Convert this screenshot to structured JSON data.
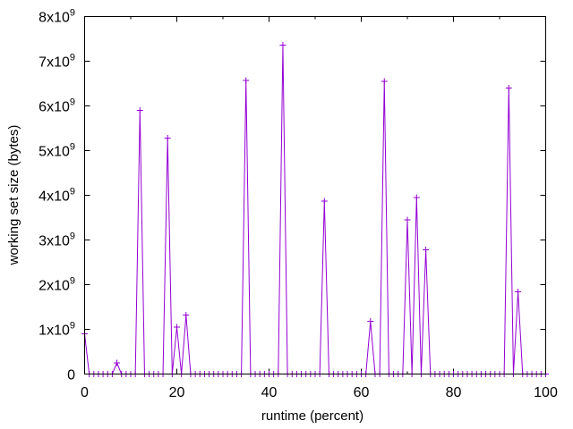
{
  "chart_data": {
    "type": "line",
    "title": "",
    "xlabel": "runtime (percent)",
    "ylabel": "working set size (bytes)",
    "xlim": [
      0,
      100
    ],
    "ylim": [
      0,
      8000000000
    ],
    "xticks": [
      {
        "value": 0,
        "label": "0"
      },
      {
        "value": 20,
        "label": "20"
      },
      {
        "value": 40,
        "label": "40"
      },
      {
        "value": 60,
        "label": "60"
      },
      {
        "value": 80,
        "label": "80"
      },
      {
        "value": 100,
        "label": "100"
      }
    ],
    "yticks": [
      {
        "value": 0,
        "label": "0",
        "base": "",
        "exp": ""
      },
      {
        "value": 1000000000,
        "label": "",
        "base": "1x10",
        "exp": "9"
      },
      {
        "value": 2000000000,
        "label": "",
        "base": "2x10",
        "exp": "9"
      },
      {
        "value": 3000000000,
        "label": "",
        "base": "3x10",
        "exp": "9"
      },
      {
        "value": 4000000000,
        "label": "",
        "base": "4x10",
        "exp": "9"
      },
      {
        "value": 5000000000,
        "label": "",
        "base": "5x10",
        "exp": "9"
      },
      {
        "value": 6000000000,
        "label": "",
        "base": "6x10",
        "exp": "9"
      },
      {
        "value": 7000000000,
        "label": "",
        "base": "7x10",
        "exp": "9"
      },
      {
        "value": 8000000000,
        "label": "",
        "base": "8x10",
        "exp": "9"
      }
    ],
    "grid": false,
    "legend": "none",
    "series_color": "#9400d3",
    "marker": "plus",
    "x": [
      0,
      1,
      2,
      3,
      4,
      5,
      6,
      7,
      8,
      9,
      10,
      11,
      12,
      13,
      14,
      15,
      16,
      17,
      18,
      19,
      20,
      21,
      22,
      23,
      24,
      25,
      26,
      27,
      28,
      29,
      30,
      31,
      32,
      33,
      34,
      35,
      36,
      37,
      38,
      39,
      40,
      41,
      42,
      43,
      44,
      45,
      46,
      47,
      48,
      49,
      50,
      51,
      52,
      53,
      54,
      55,
      56,
      57,
      58,
      59,
      60,
      61,
      62,
      63,
      64,
      65,
      66,
      67,
      68,
      69,
      70,
      71,
      72,
      73,
      74,
      75,
      76,
      77,
      78,
      79,
      80,
      81,
      82,
      83,
      84,
      85,
      86,
      87,
      88,
      89,
      90,
      91,
      92,
      93,
      94,
      95,
      96,
      97,
      98,
      99,
      100
    ],
    "y": [
      900000000,
      0,
      0,
      0,
      0,
      0,
      0,
      250000000,
      0,
      0,
      0,
      0,
      5900000000,
      0,
      0,
      0,
      0,
      0,
      5280000000,
      0,
      1050000000,
      0,
      1320000000,
      0,
      0,
      0,
      0,
      0,
      0,
      0,
      0,
      0,
      0,
      0,
      0,
      6570000000,
      0,
      0,
      0,
      0,
      0,
      0,
      0,
      7360000000,
      0,
      0,
      0,
      0,
      0,
      0,
      0,
      0,
      3870000000,
      0,
      0,
      0,
      0,
      0,
      0,
      0,
      0,
      0,
      1180000000,
      0,
      0,
      6550000000,
      0,
      0,
      0,
      0,
      3450000000,
      0,
      3950000000,
      0,
      2780000000,
      0,
      0,
      0,
      0,
      0,
      0,
      0,
      0,
      0,
      0,
      0,
      0,
      0,
      0,
      0,
      0,
      0,
      6400000000,
      0,
      1840000000,
      0,
      0,
      0,
      0,
      0,
      0
    ]
  }
}
